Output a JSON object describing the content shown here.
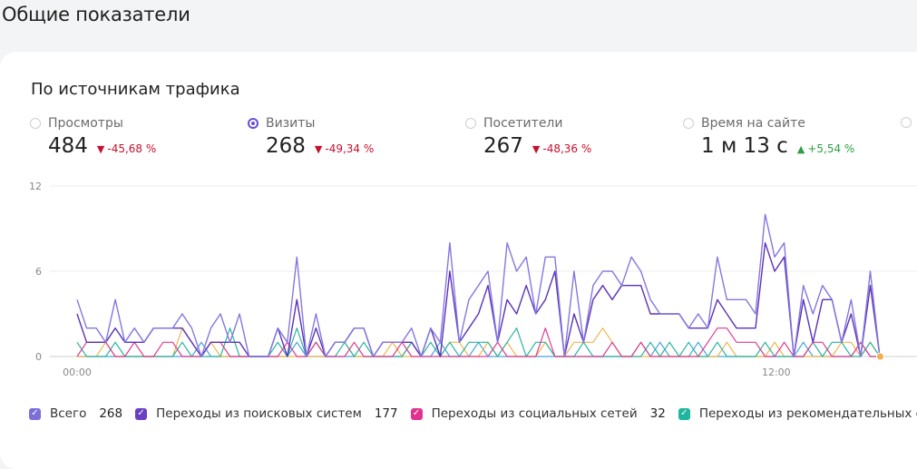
{
  "page": {
    "title": "Общие показатели"
  },
  "card": {
    "title": "По источникам трафика"
  },
  "metrics": [
    {
      "label": "Просмотры",
      "value": "484",
      "delta": "-45,68 %",
      "trend": "down",
      "selected": false
    },
    {
      "label": "Визиты",
      "value": "268",
      "delta": "-49,34 %",
      "trend": "down",
      "selected": true
    },
    {
      "label": "Посетители",
      "value": "267",
      "delta": "-48,36 %",
      "trend": "down",
      "selected": false
    },
    {
      "label": "Время на сайте",
      "value": "1 м 13 с",
      "delta": "+5,54 %",
      "trend": "up",
      "selected": false
    }
  ],
  "legend": [
    {
      "label": "Всего",
      "value": "268",
      "color": "#7b6fd6"
    },
    {
      "label": "Переходы из поисковых систем",
      "value": "177",
      "color": "#6a3fc4"
    },
    {
      "label": "Переходы из социальных сетей",
      "value": "32",
      "color": "#e0338f"
    },
    {
      "label": "Переходы из рекомендательных систем",
      "value": "",
      "color": "#1fb59f"
    }
  ],
  "chart_data": {
    "type": "line",
    "ylim": [
      0,
      12
    ],
    "yticks": [
      "12",
      "6",
      "0"
    ],
    "x_tick_labels": [
      "00:00",
      "12:00"
    ],
    "series": [
      {
        "name": "Всего",
        "color": "#8578e0",
        "values": [
          4,
          2,
          2,
          1,
          4,
          1,
          2,
          1,
          2,
          2,
          2,
          3,
          2,
          0,
          2,
          3,
          1,
          3,
          0,
          0,
          0,
          2,
          1,
          7,
          0,
          3,
          0,
          1,
          1,
          2,
          2,
          0,
          1,
          1,
          1,
          2,
          0,
          2,
          1,
          8,
          1,
          4,
          5,
          6,
          1,
          8,
          6,
          7,
          3,
          7,
          7,
          0,
          6,
          1,
          5,
          6,
          6,
          5,
          7,
          6,
          4,
          3,
          3,
          3,
          2,
          3,
          2,
          7,
          4,
          4,
          4,
          3,
          10,
          7,
          8,
          0,
          5,
          3,
          5,
          4,
          1,
          4,
          0,
          6,
          0
        ]
      },
      {
        "name": "Переходы из поисковых систем",
        "color": "#5b32b8",
        "values": [
          3,
          1,
          1,
          1,
          2,
          1,
          1,
          1,
          2,
          2,
          2,
          2,
          1,
          0,
          1,
          1,
          1,
          1,
          0,
          0,
          0,
          2,
          0,
          4,
          0,
          2,
          0,
          1,
          1,
          2,
          2,
          0,
          1,
          1,
          1,
          1,
          0,
          2,
          0,
          6,
          1,
          2,
          3,
          5,
          1,
          4,
          3,
          5,
          3,
          4,
          6,
          0,
          3,
          1,
          4,
          5,
          4,
          5,
          5,
          5,
          3,
          3,
          3,
          3,
          2,
          2,
          2,
          4,
          3,
          2,
          2,
          2,
          8,
          6,
          7,
          0,
          4,
          1,
          4,
          4,
          1,
          3,
          0,
          5,
          0
        ]
      },
      {
        "name": "Переходы из социальных сетей",
        "color": "#e03c8d",
        "values": [
          0,
          1,
          1,
          1,
          0,
          0,
          1,
          0,
          0,
          1,
          1,
          0,
          0,
          0,
          1,
          1,
          0,
          0,
          0,
          0,
          0,
          0,
          1,
          0,
          0,
          1,
          0,
          0,
          0,
          1,
          0,
          0,
          0,
          0,
          1,
          0,
          0,
          0,
          0,
          0,
          0,
          0,
          0,
          0,
          1,
          0,
          0,
          0,
          0,
          2,
          0,
          0,
          0,
          0,
          0,
          0,
          1,
          0,
          0,
          1,
          0,
          0,
          0,
          0,
          0,
          0,
          1,
          2,
          2,
          1,
          1,
          1,
          0,
          0,
          1,
          0,
          0,
          1,
          1,
          0,
          0,
          0,
          1,
          0,
          0
        ]
      },
      {
        "name": "Переходы из рекомендательных систем",
        "color": "#2bb5a0",
        "values": [
          1,
          0,
          0,
          0,
          1,
          0,
          0,
          0,
          0,
          0,
          0,
          1,
          0,
          0,
          0,
          0,
          2,
          0,
          0,
          0,
          0,
          1,
          0,
          2,
          0,
          1,
          0,
          0,
          1,
          0,
          1,
          0,
          0,
          0,
          0,
          1,
          0,
          1,
          0,
          1,
          0,
          1,
          1,
          1,
          0,
          1,
          2,
          0,
          1,
          1,
          0,
          0,
          0,
          1,
          0,
          0,
          0,
          0,
          0,
          0,
          1,
          0,
          1,
          0,
          1,
          0,
          0,
          1,
          0,
          0,
          0,
          0,
          1,
          0,
          0,
          0,
          0,
          1,
          0,
          1,
          1,
          0,
          0,
          1,
          0
        ]
      },
      {
        "name": "",
        "color": "#f0b64e",
        "values": [
          0,
          0,
          0,
          1,
          0,
          0,
          0,
          0,
          0,
          0,
          0,
          2,
          1,
          0,
          1,
          0,
          0,
          0,
          0,
          0,
          0,
          0,
          0,
          0,
          0,
          0,
          0,
          1,
          1,
          0,
          0,
          0,
          0,
          1,
          0,
          0,
          0,
          2,
          0,
          1,
          1,
          0,
          0,
          1,
          0,
          1,
          0,
          0,
          0,
          1,
          0,
          0,
          1,
          1,
          1,
          2,
          1,
          0,
          0,
          0,
          0,
          0,
          0,
          0,
          0,
          0,
          0,
          0,
          1,
          0,
          0,
          0,
          0,
          1,
          0,
          0,
          0,
          0,
          0,
          0,
          1,
          1,
          0,
          1,
          0
        ]
      },
      {
        "name": "",
        "color": "#4aa3e0",
        "values": [
          0,
          0,
          0,
          0,
          0,
          0,
          0,
          0,
          0,
          0,
          0,
          0,
          0,
          1,
          0,
          0,
          0,
          0,
          0,
          0,
          0,
          0,
          0,
          1,
          0,
          0,
          0,
          0,
          0,
          0,
          0,
          0,
          0,
          0,
          0,
          1,
          0,
          0,
          1,
          0,
          0,
          0,
          1,
          0,
          0,
          0,
          0,
          0,
          0,
          0,
          0,
          0,
          0,
          0,
          0,
          0,
          0,
          0,
          0,
          1,
          0,
          1,
          0,
          0,
          0,
          1,
          0,
          0,
          0,
          0,
          0,
          0,
          0,
          0,
          0,
          0,
          1,
          0,
          0,
          0,
          0,
          0,
          1,
          0,
          0
        ]
      }
    ]
  }
}
